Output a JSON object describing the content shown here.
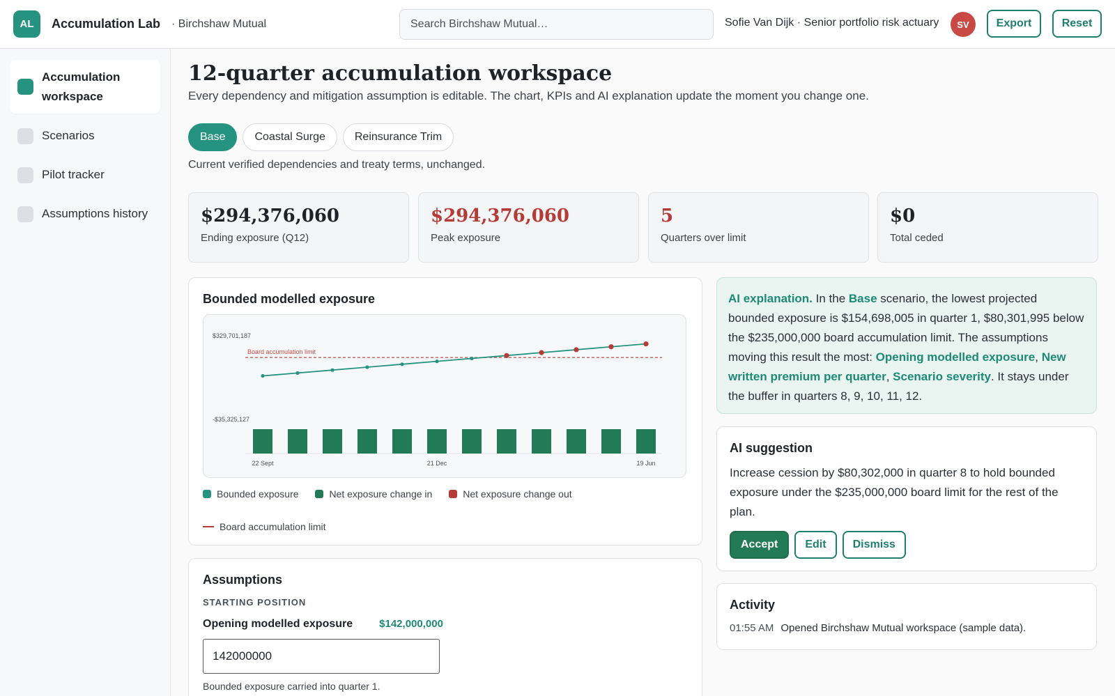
{
  "header": {
    "logo": "AL",
    "app_title": "Accumulation Lab",
    "org": "· Birchshaw Mutual",
    "search_placeholder": "Search Birchshaw Mutual…",
    "user": "Sofie Van Dijk · Senior portfolio risk actuary",
    "avatar": "SV",
    "export_label": "Export",
    "reset_label": "Reset"
  },
  "sidebar": {
    "items": [
      {
        "label": "Accumulation workspace",
        "active": true
      },
      {
        "label": "Scenarios"
      },
      {
        "label": "Pilot tracker"
      },
      {
        "label": "Assumptions history"
      }
    ]
  },
  "page": {
    "title": "12-quarter accumulation workspace",
    "subtitle": "Every dependency and mitigation assumption is editable. The chart, KPIs and AI explanation update the moment you change one."
  },
  "scenarios": {
    "tabs": [
      {
        "label": "Base",
        "active": true
      },
      {
        "label": "Coastal Surge"
      },
      {
        "label": "Reinsurance Trim"
      }
    ],
    "description": "Current verified dependencies and treaty terms, unchanged."
  },
  "kpis": [
    {
      "value": "$294,376,060",
      "label": "Ending exposure (Q12)"
    },
    {
      "value": "$294,376,060",
      "label": "Peak exposure"
    },
    {
      "value": "5",
      "label": "Quarters over limit"
    },
    {
      "value": "$0",
      "label": "Total ceded"
    }
  ],
  "chart_card": {
    "title": "Bounded modelled exposure"
  },
  "chart_data": {
    "type": "line",
    "x": [
      "22 Sept",
      "",
      "",
      "",
      "",
      "21 Dec",
      "",
      "",
      "",
      "",
      "",
      "19 Jun"
    ],
    "xtick_labels": [
      "22 Sept",
      "21 Dec",
      "19 Jun"
    ],
    "ytick_labels": [
      "$329,701,187",
      "-$35,325,127"
    ],
    "ylim": [
      -35325127,
      329701187
    ],
    "limit": {
      "value": 235000000,
      "label": "Board accumulation limit"
    },
    "series": [
      {
        "name": "Bounded exposure",
        "type": "line",
        "values": [
          154698005,
          167400000,
          180100000,
          192800000,
          205500000,
          218200000,
          230900000,
          243600000,
          256300000,
          269000000,
          281700000,
          294376060
        ]
      },
      {
        "name": "Net exposure change in",
        "type": "bar",
        "values": [
          12700000,
          12700000,
          12700000,
          12700000,
          12700000,
          12700000,
          12700000,
          12700000,
          12700000,
          12700000,
          12700000,
          12700000
        ]
      }
    ],
    "legend": [
      {
        "name": "Bounded exposure",
        "color": "#25937f",
        "shape": "square"
      },
      {
        "name": "Net exposure change in",
        "color": "#237a56",
        "shape": "square"
      },
      {
        "name": "Net exposure change out",
        "color": "#b53b37",
        "shape": "square"
      },
      {
        "name": "Board accumulation limit",
        "color": "#b53b37",
        "shape": "line"
      }
    ],
    "colors": {
      "line": "#25937f",
      "over_limit": "#b53b37",
      "bar": "#237a56",
      "limit": "#c94a45"
    }
  },
  "ai_explanation": {
    "heading": "AI explanation.",
    "t1": " In the ",
    "scenario": "Base",
    "t2": " scenario, the lowest projected bounded exposure is $154,698,005 in quarter 1, $80,301,995 below the $235,000,000 board accumulation limit. The assumptions moving this result the most: ",
    "driver1": "Opening modelled exposure",
    "sep1": ", ",
    "driver2": "New written premium per quarter",
    "sep2": ", ",
    "driver3": "Scenario severity",
    "t3": ". It stays under the buffer in quarters 8, 9, 10, 11, 12."
  },
  "ai_suggestion": {
    "title": "AI suggestion",
    "text": "Increase cession by $80,302,000 in quarter 8 to hold bounded exposure under the $235,000,000 board limit for the rest of the plan.",
    "accept": "Accept",
    "edit": "Edit",
    "dismiss": "Dismiss"
  },
  "activity": {
    "title": "Activity",
    "items": [
      {
        "time": "01:55 AM",
        "text": "Opened Birchshaw Mutual workspace (sample data)."
      }
    ]
  },
  "assumptions": {
    "title": "Assumptions",
    "section": "STARTING POSITION",
    "field_label": "Opening modelled exposure",
    "field_value": "$142,000,000",
    "input_value": "142000000",
    "help": "Bounded exposure carried into quarter 1."
  }
}
